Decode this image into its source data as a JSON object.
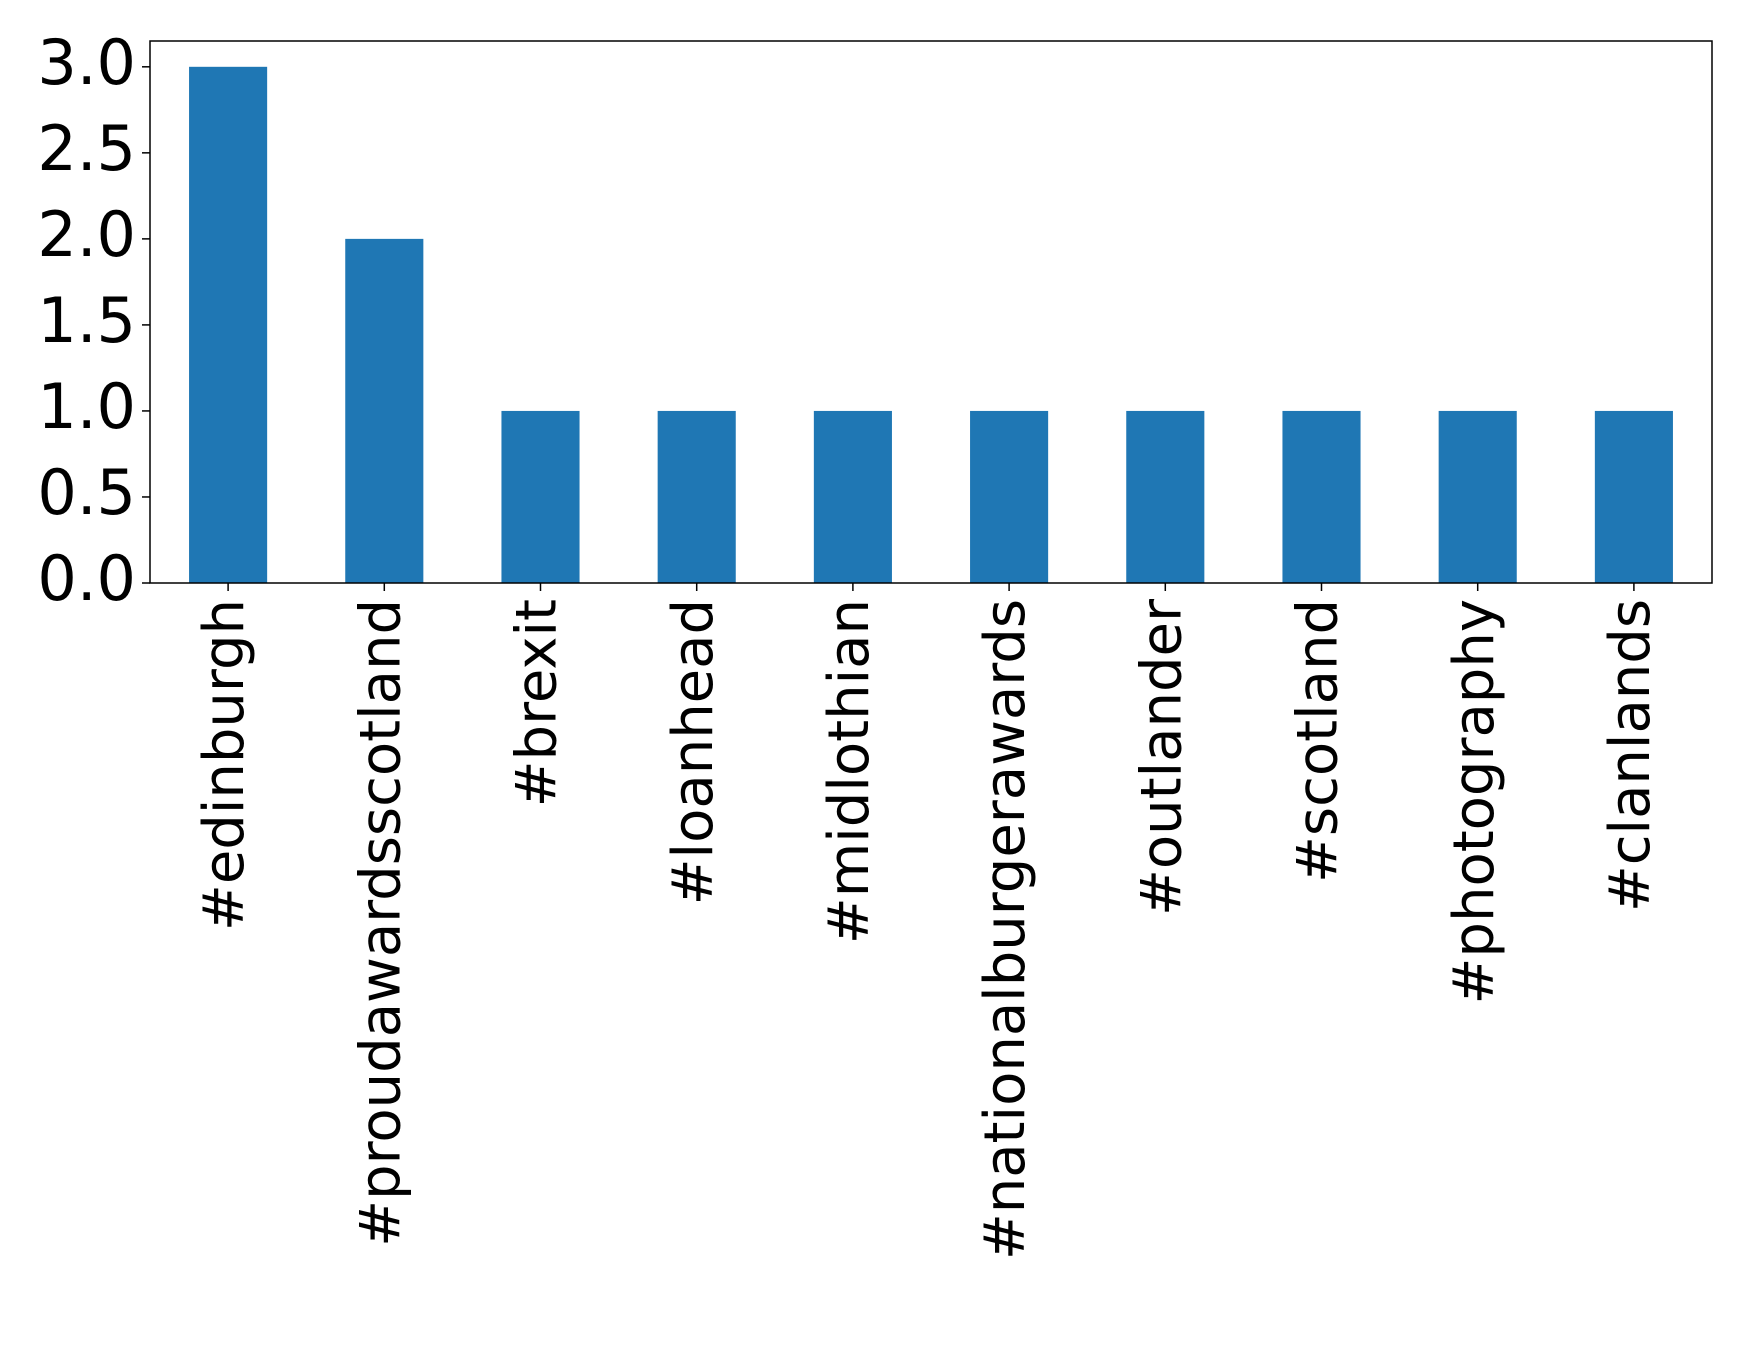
{
  "chart_data": {
    "type": "bar",
    "categories": [
      "#edinburgh",
      "#proudawardsscotland",
      "#brexit",
      "#loanhead",
      "#midlothian",
      "#nationalburgerawards",
      "#outlander",
      "#scotland",
      "#photography",
      "#clanlands"
    ],
    "values": [
      3,
      2,
      1,
      1,
      1,
      1,
      1,
      1,
      1,
      1
    ],
    "color": "#1f77b4",
    "ylim": [
      0,
      3.15
    ],
    "yticks": [
      {
        "value": 0,
        "label": "0.0"
      },
      0.5,
      {
        "value": 1,
        "label": "1.0"
      },
      1.5,
      {
        "value": 2,
        "label": "2.0"
      },
      2.5,
      {
        "value": 3,
        "label": "3.0"
      }
    ],
    "grid": false
  }
}
